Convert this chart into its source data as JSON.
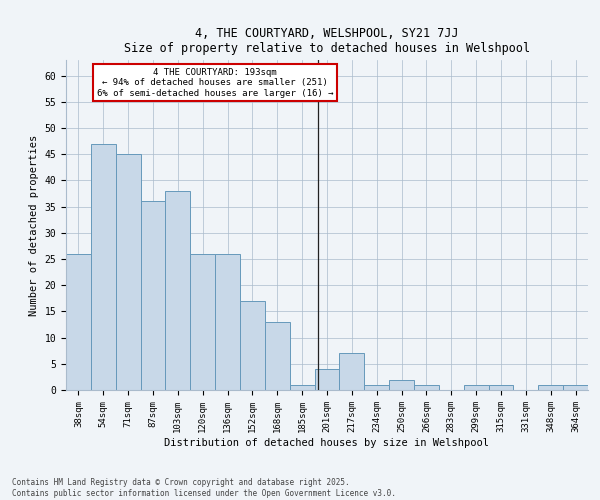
{
  "title1": "4, THE COURTYARD, WELSHPOOL, SY21 7JJ",
  "title2": "Size of property relative to detached houses in Welshpool",
  "xlabel": "Distribution of detached houses by size in Welshpool",
  "ylabel": "Number of detached properties",
  "categories": [
    "38sqm",
    "54sqm",
    "71sqm",
    "87sqm",
    "103sqm",
    "120sqm",
    "136sqm",
    "152sqm",
    "168sqm",
    "185sqm",
    "201sqm",
    "217sqm",
    "234sqm",
    "250sqm",
    "266sqm",
    "283sqm",
    "299sqm",
    "315sqm",
    "331sqm",
    "348sqm",
    "364sqm"
  ],
  "values": [
    26,
    47,
    45,
    36,
    38,
    26,
    26,
    17,
    13,
    1,
    4,
    7,
    1,
    2,
    1,
    0,
    1,
    1,
    0,
    1,
    1
  ],
  "bar_color": "#c8d8e8",
  "bar_edge_color": "#6699bb",
  "background_color": "#f0f4f8",
  "ylim": [
    0,
    63
  ],
  "yticks": [
    0,
    5,
    10,
    15,
    20,
    25,
    30,
    35,
    40,
    45,
    50,
    55,
    60
  ],
  "vline_index": 9.65,
  "annotation_line1": "4 THE COURTYARD: 193sqm",
  "annotation_line2": "← 94% of detached houses are smaller (251)",
  "annotation_line3": "6% of semi-detached houses are larger (16) →",
  "annotation_box_color": "#ffffff",
  "annotation_box_edge_color": "#cc0000",
  "footer1": "Contains HM Land Registry data © Crown copyright and database right 2025.",
  "footer2": "Contains public sector information licensed under the Open Government Licence v3.0."
}
